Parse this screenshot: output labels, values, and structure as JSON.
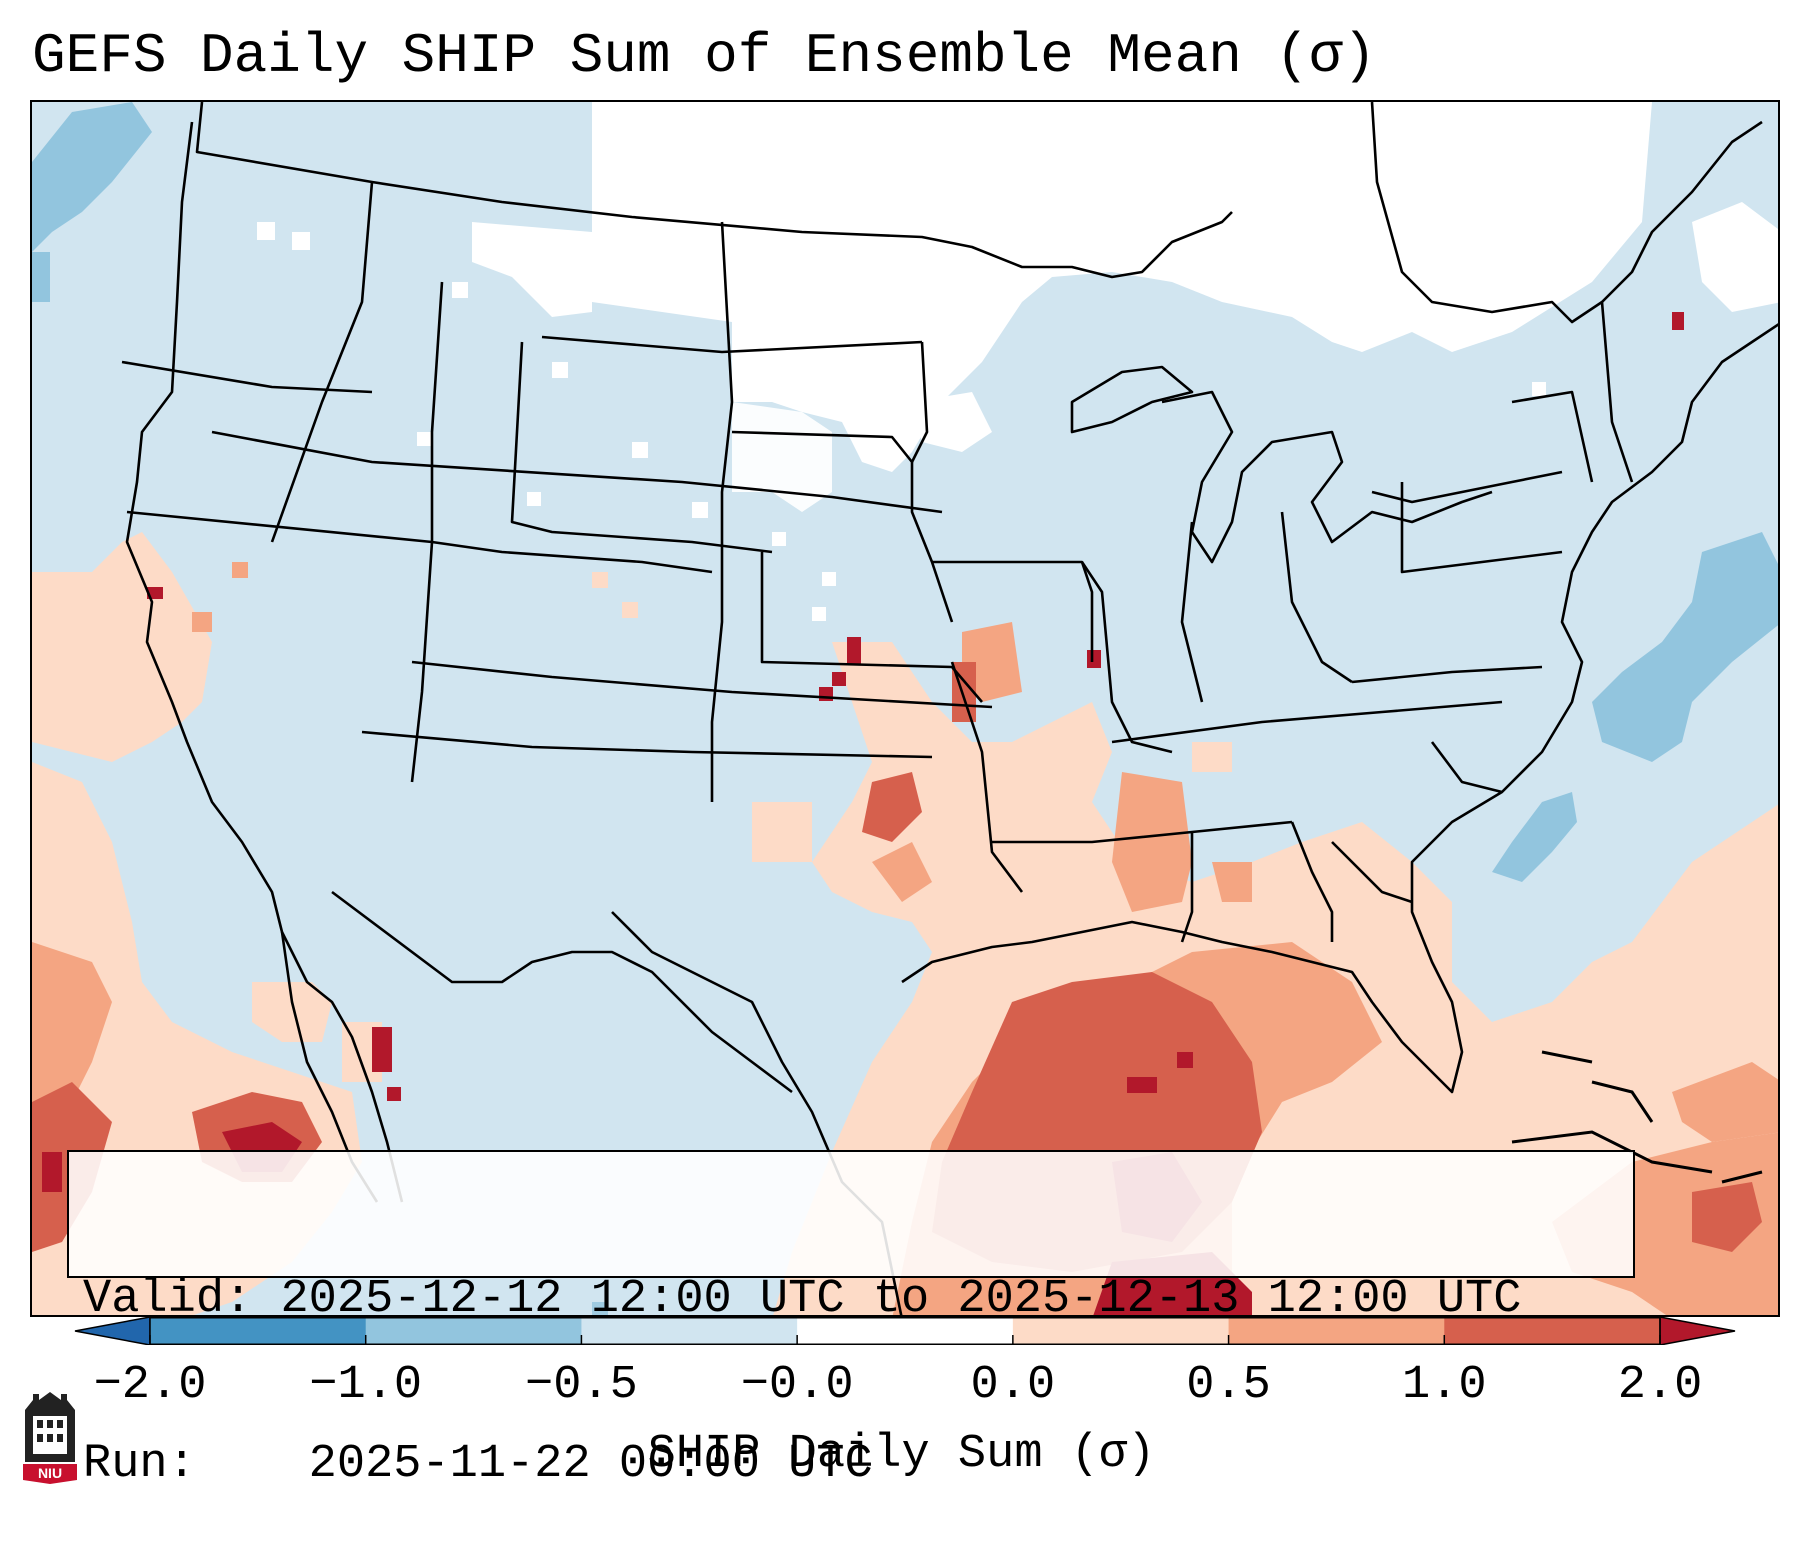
{
  "title": "GEFS Daily SHIP Sum of Ensemble Mean (σ)",
  "info": {
    "valid_label": "Valid:",
    "valid_value": "2025-12-12 12:00 UTC to 2025-12-13 12:00 UTC",
    "run_label": "Run:",
    "run_value": "2025-11-22 00:00 UTC"
  },
  "colorbar": {
    "label": "SHIP Daily Sum (σ)",
    "ticks": [
      "−2.0",
      "−1.0",
      "−0.5",
      "−0.0",
      "0.0",
      "0.5",
      "1.0",
      "2.0"
    ],
    "bins": [
      {
        "range": "< -2.0",
        "color": "#2166ac"
      },
      {
        "range": "-2.0 to -1.0",
        "color": "#4393c3"
      },
      {
        "range": "-1.0 to -0.5",
        "color": "#92c5de"
      },
      {
        "range": "-0.5 to -0.0",
        "color": "#d1e5f0"
      },
      {
        "range": "-0.0 to 0.0",
        "color": "#ffffff"
      },
      {
        "range": "0.0 to 0.5",
        "color": "#fddbc7"
      },
      {
        "range": "0.5 to 1.0",
        "color": "#f4a582"
      },
      {
        "range": "1.0 to 2.0",
        "color": "#d6604d"
      },
      {
        "range": "> 2.0",
        "color": "#b2182b"
      }
    ]
  },
  "logo": {
    "text": "NIU",
    "icon": "niu-logo-icon"
  },
  "colors": {
    "background_field": "#d1e5f0",
    "neutral": "#ffffff",
    "border": "#000000"
  }
}
